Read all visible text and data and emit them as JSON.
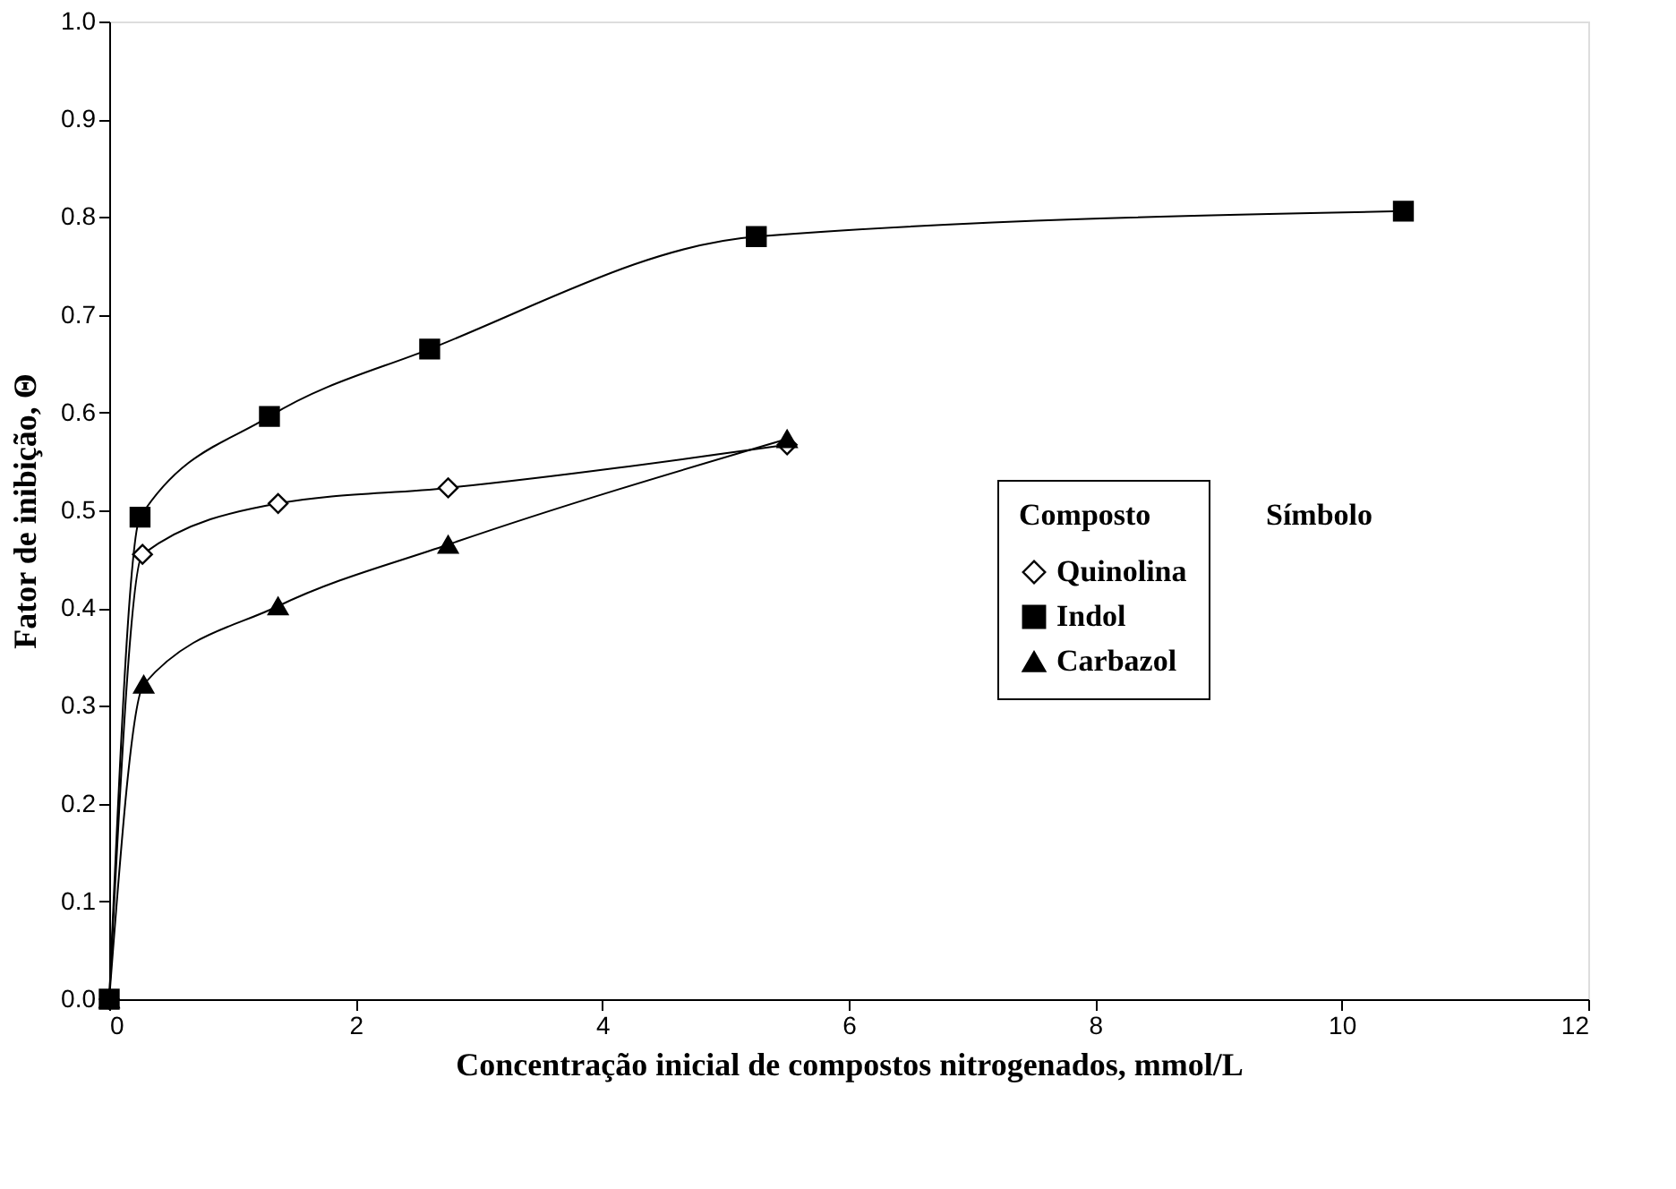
{
  "chart_data": {
    "type": "line",
    "xlabel": "Concentração inicial de compostos nitrogenados, mmol/L",
    "ylabel": "Fator de inibição, Θ",
    "legend_title": "Composto",
    "annotations": [
      "Símbolo"
    ],
    "legend": "right",
    "grid": false,
    "line_style": "solid",
    "xlim": [
      0,
      12
    ],
    "xticks": [
      0,
      2,
      4,
      6,
      8,
      10,
      12
    ],
    "ylim": [
      0,
      1
    ],
    "yticks": [
      {
        "value": 0,
        "label": "0.0"
      },
      0.1,
      0.2,
      0.3,
      0.4,
      0.5,
      0.6,
      0.7,
      0.8,
      0.9,
      {
        "value": 1,
        "label": "1.0"
      }
    ],
    "series": [
      {
        "name": "Quinolina",
        "color": "#000000",
        "marker": "diamond",
        "x": [
          0,
          0.27,
          1.37,
          2.75,
          5.5
        ],
        "values": [
          0,
          0.455,
          0.507,
          0.523,
          0.567
        ]
      },
      {
        "name": "Indol",
        "color": "#000000",
        "marker": "square",
        "x": [
          0,
          0.25,
          1.3,
          2.6,
          5.25,
          10.5
        ],
        "values": [
          0,
          0.493,
          0.596,
          0.665,
          0.78,
          0.806
        ]
      },
      {
        "name": "Carbazol",
        "color": "#000000",
        "marker": "triangle",
        "x": [
          0,
          0.28,
          1.37,
          2.75,
          5.5
        ],
        "values": [
          0,
          0.322,
          0.402,
          0.465,
          0.573
        ]
      }
    ]
  }
}
